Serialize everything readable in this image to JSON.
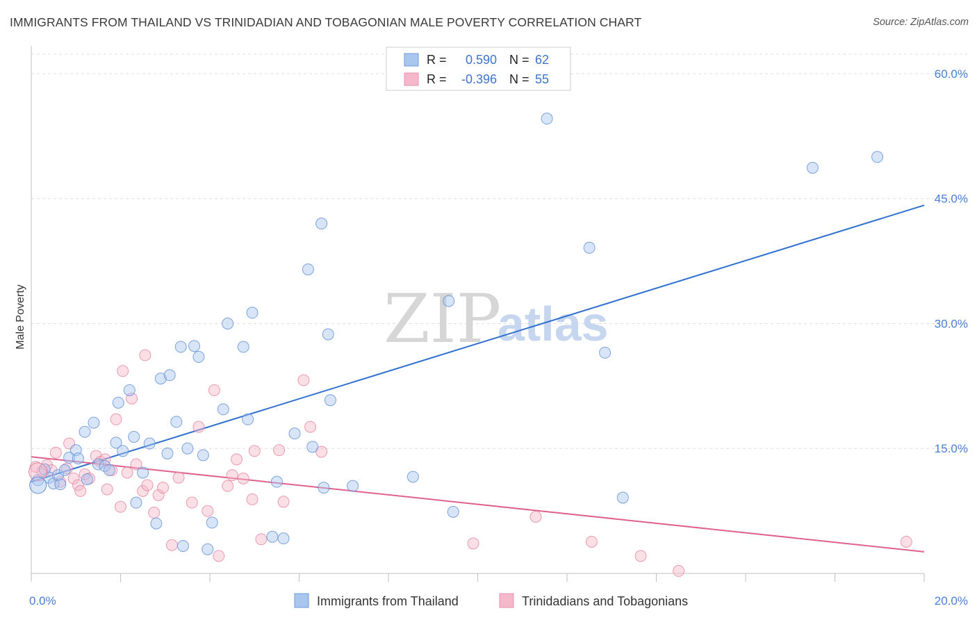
{
  "title": "IMMIGRANTS FROM THAILAND VS TRINIDADIAN AND TOBAGONIAN MALE POVERTY CORRELATION CHART",
  "source": "Source: ZipAtlas.com",
  "watermark": {
    "zip": "ZIP",
    "atlas": "atlas"
  },
  "legend": {
    "rows": [
      {
        "r_label": "R =",
        "r_value": "0.590",
        "n_label": "N =",
        "n_value": "62",
        "color": "#a9c6ef"
      },
      {
        "r_label": "R =",
        "r_value": "-0.396",
        "n_label": "N =",
        "n_value": "55",
        "color": "#f5b8ca"
      }
    ]
  },
  "bottom_legend": [
    {
      "label": "Immigrants from Thailand",
      "color": "#a9c6ef"
    },
    {
      "label": "Trinidadians and Tobagonians",
      "color": "#f5b8ca"
    }
  ],
  "chart_data": {
    "type": "scatter",
    "xlabel": "",
    "ylabel": "Male Poverty",
    "xlim": [
      0,
      20
    ],
    "ylim": [
      0,
      63
    ],
    "x_tick_labels": [
      {
        "value": 0,
        "label": "0.0%"
      },
      {
        "value": 20,
        "label": "20.0%"
      }
    ],
    "y_tick_labels": [
      {
        "value": 15,
        "label": "15.0%"
      },
      {
        "value": 30,
        "label": "30.0%"
      },
      {
        "value": 45,
        "label": "45.0%"
      },
      {
        "value": 60,
        "label": "60.0%"
      }
    ],
    "grid": "horizontal dashed",
    "series": [
      {
        "name": "Immigrants from Thailand",
        "color": "#a9c6ef",
        "stroke": "#5f8fd6",
        "trend_color": "#2f6fd0",
        "trend": {
          "x": [
            0,
            20
          ],
          "y": [
            11.0,
            44.2
          ]
        },
        "points": [
          [
            0.15,
            11.2
          ],
          [
            0.3,
            12.5
          ],
          [
            0.4,
            11.5
          ],
          [
            0.5,
            10.8
          ],
          [
            0.6,
            11.8
          ],
          [
            0.75,
            12.4
          ],
          [
            0.65,
            10.7
          ],
          [
            0.85,
            13.9
          ],
          [
            1.0,
            14.8
          ],
          [
            1.05,
            13.8
          ],
          [
            1.2,
            17.0
          ],
          [
            1.25,
            11.3
          ],
          [
            1.4,
            18.1
          ],
          [
            1.5,
            13.1
          ],
          [
            1.65,
            12.9
          ],
          [
            1.75,
            12.4
          ],
          [
            1.9,
            15.7
          ],
          [
            1.95,
            20.5
          ],
          [
            2.05,
            14.7
          ],
          [
            2.2,
            22.0
          ],
          [
            2.3,
            16.4
          ],
          [
            2.35,
            8.5
          ],
          [
            2.5,
            12.1
          ],
          [
            2.65,
            15.6
          ],
          [
            2.8,
            6.0
          ],
          [
            2.9,
            23.4
          ],
          [
            3.05,
            14.4
          ],
          [
            3.1,
            23.8
          ],
          [
            3.25,
            18.2
          ],
          [
            3.35,
            27.2
          ],
          [
            3.4,
            3.3
          ],
          [
            3.5,
            15.0
          ],
          [
            3.65,
            27.3
          ],
          [
            3.75,
            26.0
          ],
          [
            3.85,
            14.2
          ],
          [
            3.95,
            2.9
          ],
          [
            4.05,
            6.1
          ],
          [
            4.3,
            19.7
          ],
          [
            4.4,
            30.0
          ],
          [
            4.75,
            27.2
          ],
          [
            4.85,
            18.5
          ],
          [
            4.95,
            31.3
          ],
          [
            5.4,
            4.4
          ],
          [
            5.5,
            11.0
          ],
          [
            5.65,
            4.2
          ],
          [
            5.9,
            16.8
          ],
          [
            6.2,
            36.5
          ],
          [
            6.3,
            15.2
          ],
          [
            6.5,
            42.0
          ],
          [
            6.55,
            10.3
          ],
          [
            6.65,
            28.7
          ],
          [
            6.7,
            20.8
          ],
          [
            7.2,
            10.5
          ],
          [
            8.55,
            11.6
          ],
          [
            9.35,
            32.7
          ],
          [
            9.45,
            7.4
          ],
          [
            11.55,
            54.6
          ],
          [
            12.5,
            39.1
          ],
          [
            12.85,
            26.5
          ],
          [
            13.25,
            9.1
          ],
          [
            17.5,
            48.7
          ],
          [
            18.95,
            50.0
          ]
        ]
      },
      {
        "name": "Trinidadians and Tobagonians",
        "color": "#f5b8ca",
        "stroke": "#e8849f",
        "trend_color": "#e0628c",
        "trend": {
          "x": [
            0,
            20
          ],
          "y": [
            14.0,
            2.6
          ]
        },
        "points": [
          [
            0.1,
            12.8
          ],
          [
            0.25,
            12.2
          ],
          [
            0.35,
            13.0
          ],
          [
            0.45,
            12.4
          ],
          [
            0.55,
            14.5
          ],
          [
            0.65,
            11.0
          ],
          [
            0.8,
            12.6
          ],
          [
            0.85,
            15.6
          ],
          [
            0.95,
            11.4
          ],
          [
            1.05,
            10.6
          ],
          [
            1.1,
            9.9
          ],
          [
            1.2,
            11.9
          ],
          [
            1.3,
            11.4
          ],
          [
            1.45,
            14.1
          ],
          [
            1.55,
            13.4
          ],
          [
            1.65,
            13.7
          ],
          [
            1.7,
            10.1
          ],
          [
            1.8,
            12.4
          ],
          [
            1.9,
            18.5
          ],
          [
            2.0,
            8.0
          ],
          [
            2.05,
            24.3
          ],
          [
            2.15,
            12.1
          ],
          [
            2.25,
            21.0
          ],
          [
            2.35,
            13.1
          ],
          [
            2.5,
            9.9
          ],
          [
            2.55,
            26.2
          ],
          [
            2.6,
            10.6
          ],
          [
            2.75,
            7.3
          ],
          [
            2.85,
            9.4
          ],
          [
            2.95,
            10.3
          ],
          [
            3.15,
            3.4
          ],
          [
            3.3,
            11.5
          ],
          [
            3.6,
            8.5
          ],
          [
            3.75,
            17.6
          ],
          [
            3.95,
            7.5
          ],
          [
            4.1,
            22.0
          ],
          [
            4.2,
            2.1
          ],
          [
            4.4,
            10.5
          ],
          [
            4.5,
            11.8
          ],
          [
            4.6,
            13.7
          ],
          [
            4.75,
            11.4
          ],
          [
            4.95,
            8.9
          ],
          [
            5.0,
            14.7
          ],
          [
            5.15,
            4.1
          ],
          [
            5.55,
            14.8
          ],
          [
            5.65,
            8.6
          ],
          [
            6.1,
            23.2
          ],
          [
            6.25,
            17.6
          ],
          [
            6.5,
            14.6
          ],
          [
            9.9,
            3.6
          ],
          [
            11.3,
            6.8
          ],
          [
            12.55,
            3.8
          ],
          [
            13.65,
            2.1
          ],
          [
            19.6,
            3.8
          ],
          [
            14.5,
            0.3
          ]
        ]
      }
    ]
  }
}
